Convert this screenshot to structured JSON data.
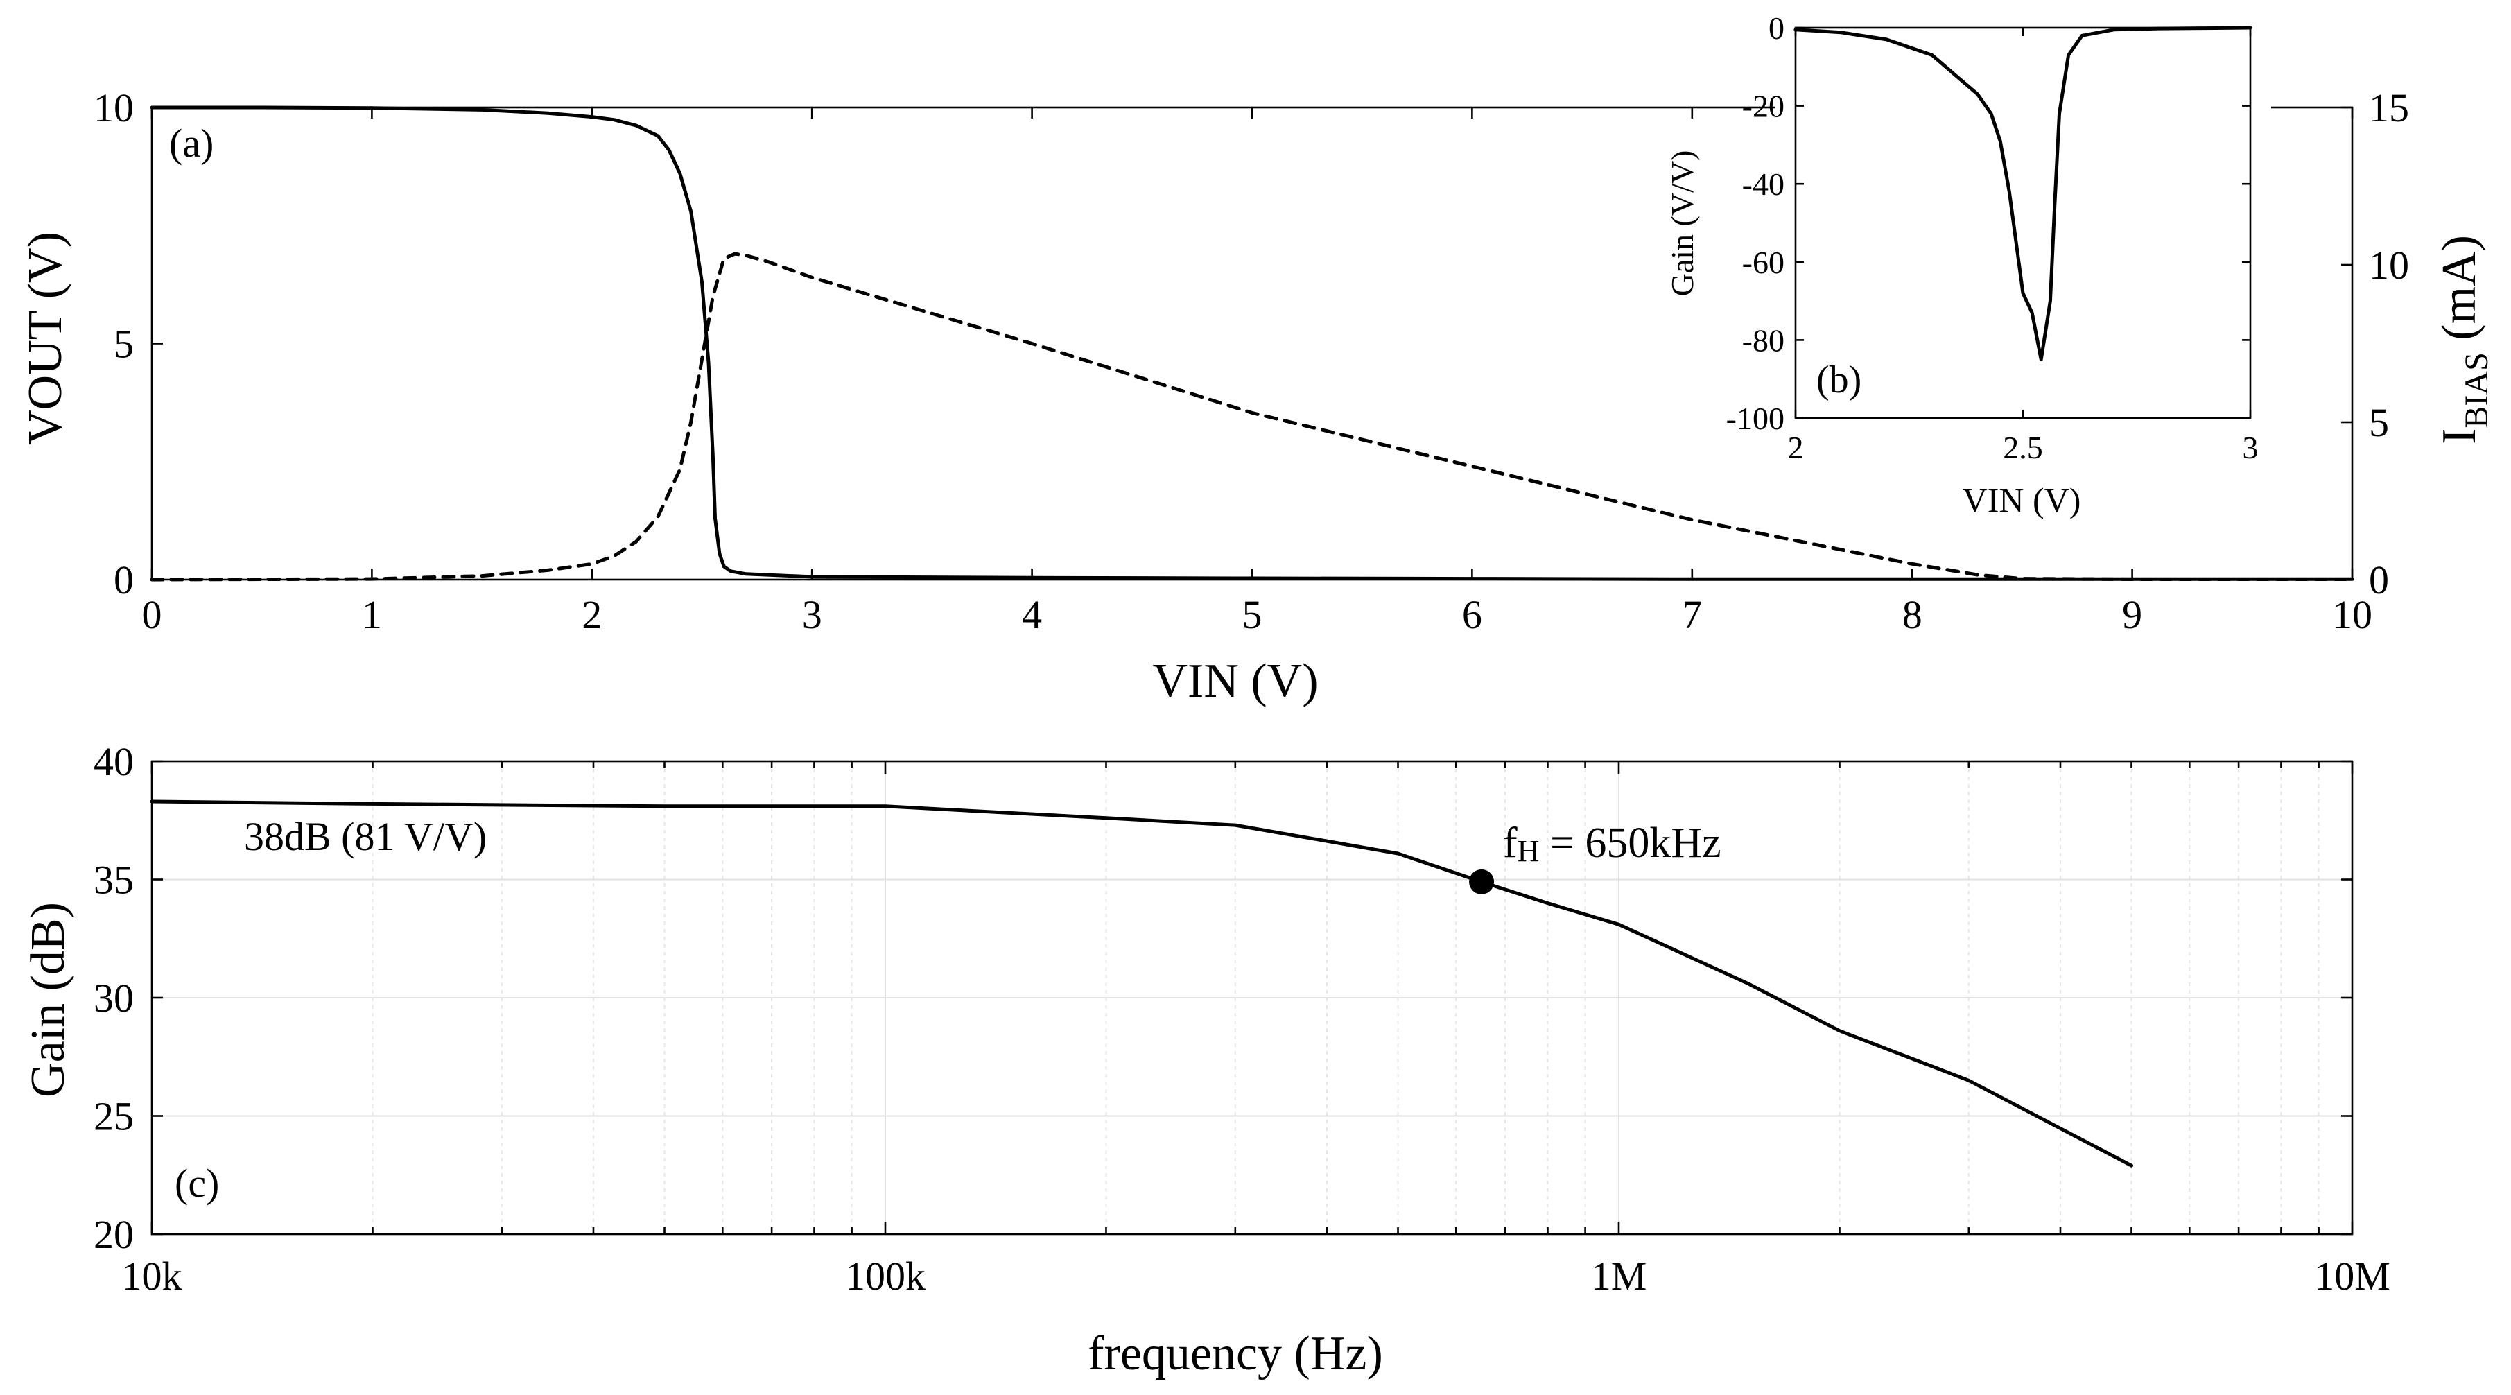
{
  "chart_data": [
    {
      "id": "a",
      "type": "line",
      "panel_label": "(a)",
      "xlabel": "VIN (V)",
      "ylabel": "VOUT (V)",
      "y2label_main": "I",
      "y2label_sub": "BIAS",
      "y2label_unit": " (mA)",
      "xlim": [
        0,
        10
      ],
      "ylim": [
        0,
        10
      ],
      "y2lim": [
        0,
        15
      ],
      "xticks": [
        0,
        1,
        2,
        3,
        4,
        5,
        6,
        7,
        8,
        9,
        10
      ],
      "yticks": [
        0,
        5,
        10
      ],
      "y2ticks": [
        0,
        5,
        10,
        15
      ],
      "series": [
        {
          "name": "VOUT",
          "axis": "left",
          "style": "solid",
          "x": [
            0,
            0.5,
            1,
            1.5,
            1.8,
            2.0,
            2.1,
            2.2,
            2.3,
            2.35,
            2.4,
            2.45,
            2.5,
            2.53,
            2.55,
            2.56,
            2.58,
            2.6,
            2.63,
            2.7,
            3,
            4,
            5,
            6,
            7,
            8,
            9,
            10
          ],
          "y": [
            10,
            10,
            9.99,
            9.95,
            9.88,
            9.8,
            9.74,
            9.62,
            9.4,
            9.1,
            8.6,
            7.8,
            6.3,
            4.6,
            2.6,
            1.3,
            0.55,
            0.28,
            0.18,
            0.12,
            0.06,
            0.04,
            0.03,
            0.02,
            0.01,
            0.01,
            0.01,
            0.01
          ]
        },
        {
          "name": "IBIAS",
          "axis": "right",
          "style": "dashed",
          "x": [
            0,
            1,
            1.5,
            1.8,
            2.0,
            2.1,
            2.2,
            2.3,
            2.4,
            2.45,
            2.5,
            2.55,
            2.6,
            2.65,
            2.7,
            2.8,
            3,
            4,
            5,
            6,
            7,
            8,
            8.3,
            8.5,
            9,
            10
          ],
          "y": [
            0,
            0.02,
            0.12,
            0.3,
            0.5,
            0.75,
            1.2,
            2.0,
            3.5,
            5.0,
            7.0,
            9.0,
            10.2,
            10.35,
            10.3,
            10.1,
            9.6,
            7.5,
            5.3,
            3.6,
            1.9,
            0.5,
            0.15,
            0.03,
            0.01,
            0.01
          ]
        }
      ]
    },
    {
      "id": "b",
      "type": "line",
      "panel_label": "(b)",
      "xlabel": "VIN (V)",
      "ylabel": "Gain (V/V)",
      "xlim": [
        2,
        3
      ],
      "ylim": [
        -100,
        0
      ],
      "xtick_values": [
        2,
        2.5,
        3
      ],
      "xtick_labels": [
        "2",
        "2.5",
        "3"
      ],
      "yticks": [
        -100,
        -80,
        -60,
        -40,
        -20,
        0
      ],
      "series": [
        {
          "name": "Gain",
          "x": [
            2.0,
            2.1,
            2.2,
            2.3,
            2.35,
            2.4,
            2.43,
            2.45,
            2.47,
            2.5,
            2.52,
            2.54,
            2.56,
            2.57,
            2.58,
            2.6,
            2.63,
            2.7,
            2.8,
            2.9,
            3.0
          ],
          "y": [
            -0.5,
            -1.2,
            -3,
            -7,
            -12,
            -17,
            -22,
            -29,
            -42,
            -68,
            -73,
            -85,
            -70,
            -45,
            -22,
            -7,
            -2,
            -0.5,
            -0.2,
            -0.1,
            0
          ]
        }
      ]
    },
    {
      "id": "c",
      "type": "line",
      "xscale": "log",
      "panel_label": "(c)",
      "xlabel": "frequency (Hz)",
      "ylabel": "Gain (dB)",
      "xlim": [
        10000,
        10000000
      ],
      "ylim": [
        20,
        40
      ],
      "xtick_values": [
        10000,
        100000,
        1000000,
        10000000
      ],
      "xtick_labels": [
        "10k",
        "100k",
        "1M",
        "10M"
      ],
      "yticks": [
        20,
        25,
        30,
        35,
        40
      ],
      "annotation_text": "38dB (81 V/V)",
      "marker": {
        "x": 650000,
        "y": 34.9,
        "label_main": "f",
        "label_sub": "H",
        "label_rest": " = 650kHz"
      },
      "series": [
        {
          "name": "Gain",
          "x": [
            10000,
            20000,
            50000,
            100000,
            200000,
            300000,
            500000,
            650000,
            800000,
            1000000,
            1500000,
            2000000,
            3000000,
            5000000
          ],
          "y": [
            38.3,
            38.2,
            38.1,
            38.1,
            37.6,
            37.3,
            36.1,
            34.9,
            34.0,
            33.1,
            30.6,
            28.6,
            26.5,
            22.9
          ]
        }
      ]
    }
  ]
}
